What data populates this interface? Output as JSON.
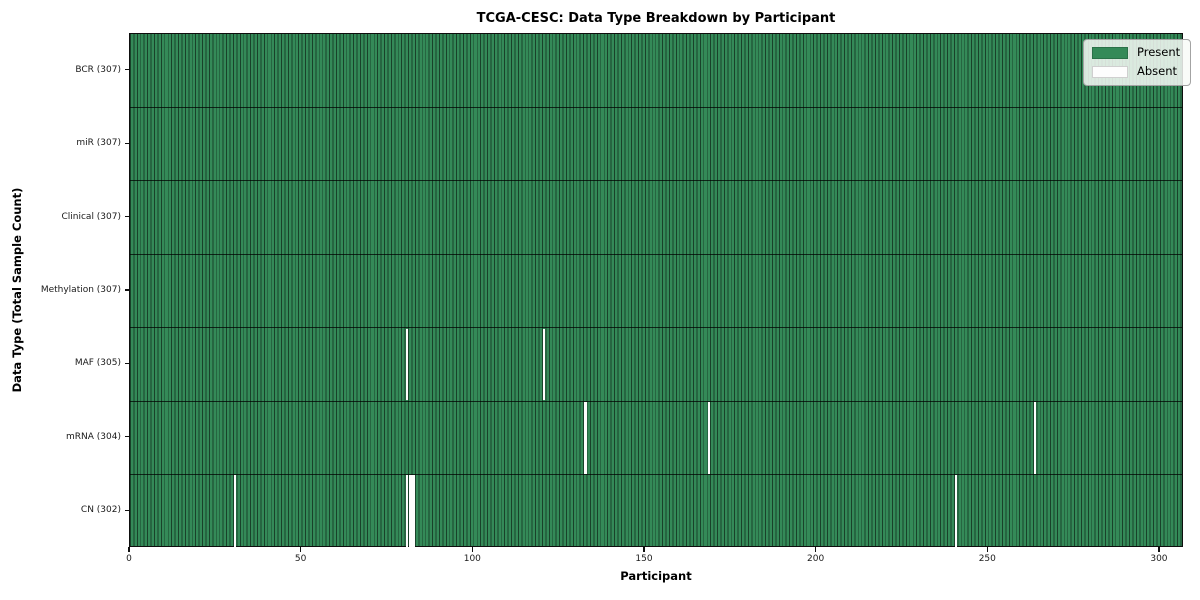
{
  "chart_data": {
    "type": "heatmap",
    "title": "TCGA-CESC: Data Type Breakdown by Participant",
    "xlabel": "Participant",
    "ylabel": "Data Type (Total Sample Count)",
    "x_ticks": [
      0,
      50,
      100,
      150,
      200,
      250,
      300
    ],
    "x_range": [
      0,
      307
    ],
    "total_participants": 307,
    "grid": "per-cell dark borders",
    "legend_position": "upper right",
    "legend": [
      {
        "label": "Present",
        "color": "#348a58"
      },
      {
        "label": "Absent",
        "color": "#fdfdfd"
      }
    ],
    "colors": {
      "present": "#348a58",
      "absent": "#fdfdfd",
      "cell_border": "#1d4a32"
    },
    "rows": [
      {
        "label": "BCR (307)",
        "data_type": "BCR",
        "present_count": 307,
        "absent_participants": []
      },
      {
        "label": "miR (307)",
        "data_type": "miR",
        "present_count": 307,
        "absent_participants": []
      },
      {
        "label": "Clinical (307)",
        "data_type": "Clinical",
        "present_count": 307,
        "absent_participants": []
      },
      {
        "label": "Methylation (307)",
        "data_type": "Methylation",
        "present_count": 307,
        "absent_participants": []
      },
      {
        "label": "MAF (305)",
        "data_type": "MAF",
        "present_count": 305,
        "absent_participants": [
          80,
          120
        ]
      },
      {
        "label": "mRNA (304)",
        "data_type": "mRNA",
        "present_count": 304,
        "absent_participants": [
          132,
          168,
          263
        ]
      },
      {
        "label": "CN (302)",
        "data_type": "CN",
        "present_count": 302,
        "absent_participants": [
          30,
          80,
          81,
          82,
          240
        ]
      }
    ]
  }
}
